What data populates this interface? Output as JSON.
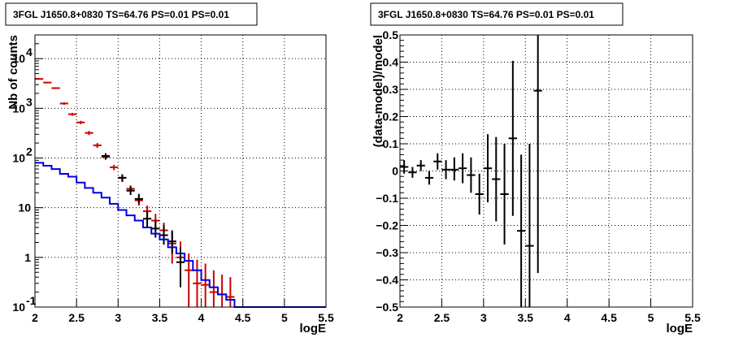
{
  "chart_data": [
    {
      "type": "line",
      "title": "3FGL J1650.8+0830 TS=64.76 PS=0.01 PS=0.01",
      "xlabel": "logE",
      "ylabel": "Nb of counts",
      "xlim": [
        2,
        5.5
      ],
      "ylim": [
        0.1,
        30000
      ],
      "yscale": "log",
      "grid": true,
      "xticks": [
        "2",
        "2.5",
        "3",
        "3.5",
        "4",
        "4.5",
        "5",
        "5.5"
      ],
      "yticks": [
        {
          "value": 0.1,
          "label": "10",
          "exp": "-1"
        },
        {
          "value": 1,
          "label": "1",
          "exp": ""
        },
        {
          "value": 10,
          "label": "10",
          "exp": ""
        },
        {
          "value": 100,
          "label": "10",
          "exp": "2"
        },
        {
          "value": 1000,
          "label": "10",
          "exp": "3"
        },
        {
          "value": 10000,
          "label": "10",
          "exp": "4"
        }
      ],
      "series": [
        {
          "color": "#cc0000",
          "style": "errorbar",
          "points": [
            {
              "x": 2.05,
              "y": 3900,
              "lo": 3780,
              "hi": 4020
            },
            {
              "x": 2.15,
              "y": 3300,
              "lo": 3190,
              "hi": 3410
            },
            {
              "x": 2.25,
              "y": 2550,
              "lo": 2450,
              "hi": 2650
            },
            {
              "x": 2.35,
              "y": 1250,
              "lo": 1180,
              "hi": 1320
            },
            {
              "x": 2.45,
              "y": 760,
              "lo": 710,
              "hi": 810
            },
            {
              "x": 2.55,
              "y": 520,
              "lo": 480,
              "hi": 560
            },
            {
              "x": 2.65,
              "y": 320,
              "lo": 290,
              "hi": 350
            },
            {
              "x": 2.75,
              "y": 180,
              "lo": 160,
              "hi": 200
            },
            {
              "x": 2.85,
              "y": 105,
              "lo": 92,
              "hi": 118
            },
            {
              "x": 2.95,
              "y": 65,
              "lo": 57,
              "hi": 73
            },
            {
              "x": 3.05,
              "y": 40,
              "lo": 34,
              "hi": 46
            },
            {
              "x": 3.15,
              "y": 24,
              "lo": 20,
              "hi": 28
            },
            {
              "x": 3.25,
              "y": 14,
              "lo": 11,
              "hi": 17
            },
            {
              "x": 3.35,
              "y": 8.5,
              "lo": 6.5,
              "hi": 11
            },
            {
              "x": 3.45,
              "y": 5.5,
              "lo": 4,
              "hi": 7.5
            },
            {
              "x": 3.55,
              "y": 3.5,
              "lo": 2.2,
              "hi": 5
            },
            {
              "x": 3.65,
              "y": 1.9,
              "lo": 0.75,
              "hi": 3.2
            },
            {
              "x": 3.75,
              "y": 1,
              "lo": 0.3,
              "hi": 2.1
            },
            {
              "x": 3.85,
              "y": 0.55,
              "lo": 0.1,
              "hi": 1.2
            },
            {
              "x": 3.95,
              "y": 0.3,
              "lo": 0.1,
              "hi": 0.9
            },
            {
              "x": 4.05,
              "y": 0.28,
              "lo": 0.1,
              "hi": 0.75
            },
            {
              "x": 4.15,
              "y": 0.2,
              "lo": 0.1,
              "hi": 0.55
            },
            {
              "x": 4.25,
              "y": 0.18,
              "lo": 0.1,
              "hi": 0.45
            },
            {
              "x": 4.35,
              "y": 0.16,
              "lo": 0.1,
              "hi": 0.4
            }
          ]
        },
        {
          "color": "#000000",
          "style": "errorbar",
          "points": [
            {
              "x": 2.85,
              "y": 110,
              "lo": 95,
              "hi": 125
            },
            {
              "x": 3.05,
              "y": 40,
              "lo": 33,
              "hi": 47
            },
            {
              "x": 3.15,
              "y": 22,
              "lo": 18,
              "hi": 27
            },
            {
              "x": 3.25,
              "y": 15,
              "lo": 12,
              "hi": 19
            },
            {
              "x": 3.35,
              "y": 6,
              "lo": 4,
              "hi": 8.5
            },
            {
              "x": 3.45,
              "y": 3.8,
              "lo": 2.5,
              "hi": 5.5
            },
            {
              "x": 3.55,
              "y": 2.8,
              "lo": 1.8,
              "hi": 4.5
            },
            {
              "x": 3.65,
              "y": 2.1,
              "lo": 1.2,
              "hi": 3.5
            },
            {
              "x": 3.75,
              "y": 0.8,
              "lo": 0.25,
              "hi": 1.6
            }
          ]
        },
        {
          "color": "#0000dd",
          "style": "step",
          "edges": [
            2.0,
            2.1,
            2.2,
            2.3,
            2.4,
            2.5,
            2.6,
            2.7,
            2.8,
            2.9,
            3.0,
            3.1,
            3.2,
            3.3,
            3.4,
            3.5,
            3.6,
            3.7,
            3.8,
            3.9,
            4.0,
            4.1,
            4.2,
            4.3,
            4.4,
            5.5
          ],
          "values": [
            80,
            70,
            60,
            48,
            42,
            32,
            25,
            20,
            16,
            12,
            9,
            7,
            5.5,
            4,
            3,
            2.3,
            1.6,
            1.2,
            0.85,
            0.55,
            0.35,
            0.25,
            0.18,
            0.14,
            0.1
          ]
        }
      ]
    },
    {
      "type": "scatter",
      "title": "3FGL J1650.8+0830 TS=64.76 PS=0.01 PS=0.01",
      "xlabel": "logE",
      "ylabel": "(data-model)/model",
      "xlim": [
        2,
        5.5
      ],
      "ylim": [
        -0.5,
        0.5
      ],
      "grid": true,
      "xticks": [
        "2",
        "2.5",
        "3",
        "3.5",
        "4",
        "4.5",
        "5",
        "5.5"
      ],
      "yticks": [
        "-0.5",
        "-0.4",
        "-0.3",
        "-0.2",
        "-0.1",
        "0",
        "0.1",
        "0.2",
        "0.3",
        "0.4",
        "0.5"
      ],
      "series": [
        {
          "color": "#000000",
          "style": "errorbar",
          "points": [
            {
              "x": 2.05,
              "y": 0.015,
              "lo": -0.01,
              "hi": 0.04
            },
            {
              "x": 2.15,
              "y": -0.005,
              "lo": -0.025,
              "hi": 0.015
            },
            {
              "x": 2.25,
              "y": 0.02,
              "lo": 0.0,
              "hi": 0.04
            },
            {
              "x": 2.35,
              "y": -0.025,
              "lo": -0.05,
              "hi": 0.0
            },
            {
              "x": 2.45,
              "y": 0.035,
              "lo": 0.005,
              "hi": 0.065
            },
            {
              "x": 2.55,
              "y": 0.005,
              "lo": -0.03,
              "hi": 0.04
            },
            {
              "x": 2.65,
              "y": 0.005,
              "lo": -0.035,
              "hi": 0.05
            },
            {
              "x": 2.75,
              "y": 0.01,
              "lo": -0.045,
              "hi": 0.065
            },
            {
              "x": 2.85,
              "y": -0.015,
              "lo": -0.08,
              "hi": 0.05
            },
            {
              "x": 2.95,
              "y": -0.085,
              "lo": -0.16,
              "hi": -0.01
            },
            {
              "x": 3.05,
              "y": 0.01,
              "lo": -0.115,
              "hi": 0.135
            },
            {
              "x": 3.15,
              "y": -0.03,
              "lo": -0.185,
              "hi": 0.125
            },
            {
              "x": 3.25,
              "y": -0.085,
              "lo": -0.27,
              "hi": 0.1
            },
            {
              "x": 3.35,
              "y": 0.12,
              "lo": -0.165,
              "hi": 0.405
            },
            {
              "x": 3.45,
              "y": -0.22,
              "lo": -0.5,
              "hi": 0.06
            },
            {
              "x": 3.55,
              "y": -0.275,
              "lo": -0.5,
              "hi": 0.1
            },
            {
              "x": 3.65,
              "y": 0.295,
              "lo": -0.375,
              "hi": 0.5
            }
          ]
        }
      ]
    }
  ]
}
